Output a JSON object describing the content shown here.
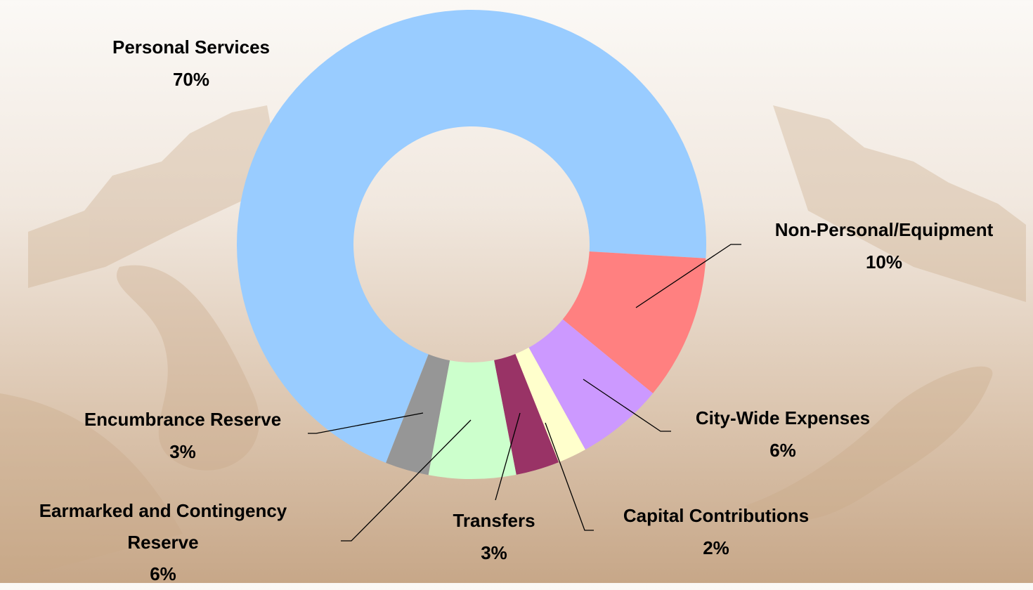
{
  "chart_data": {
    "type": "donut",
    "categories": [
      "Personal Services",
      "Non-Personal/Equipment",
      "City-Wide Expenses",
      "Capital Contributions",
      "Transfers",
      "Earmarked and Contingency Reserve",
      "Encumbrance Reserve"
    ],
    "values": [
      70,
      10,
      6,
      2,
      3,
      6,
      3
    ],
    "value_labels": [
      "70%",
      "10%",
      "6%",
      "2%",
      "3%",
      "6%",
      "3%"
    ],
    "colors": [
      "#99ccff",
      "#ff8080",
      "#cc99ff",
      "#ffffcc",
      "#993366",
      "#ccffcc",
      "#969696"
    ]
  }
}
